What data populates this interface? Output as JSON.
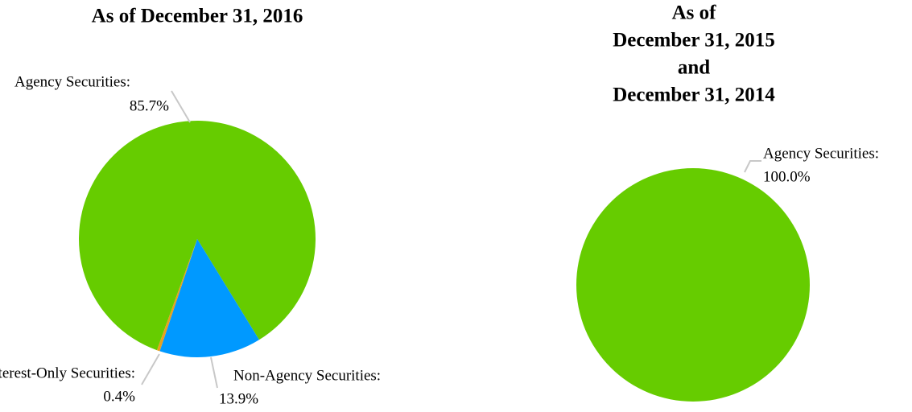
{
  "chart_data": [
    {
      "type": "pie",
      "title": [
        "As of December 31, 2016"
      ],
      "categories": [
        "Agency Securities:",
        "Non-Agency Securities:",
        "Interest-Only Securities:"
      ],
      "values": [
        85.7,
        13.9,
        0.4
      ],
      "value_labels": [
        "85.7%",
        "13.9%",
        "0.4%"
      ],
      "colors": [
        "#66cc00",
        "#0099ff",
        "#e8a020"
      ]
    },
    {
      "type": "pie",
      "title": [
        "As of",
        "December 31, 2015",
        "and",
        "December 31, 2014"
      ],
      "categories": [
        "Agency Securities:"
      ],
      "values": [
        100.0
      ],
      "value_labels": [
        "100.0%"
      ],
      "colors": [
        "#66cc00"
      ]
    }
  ]
}
